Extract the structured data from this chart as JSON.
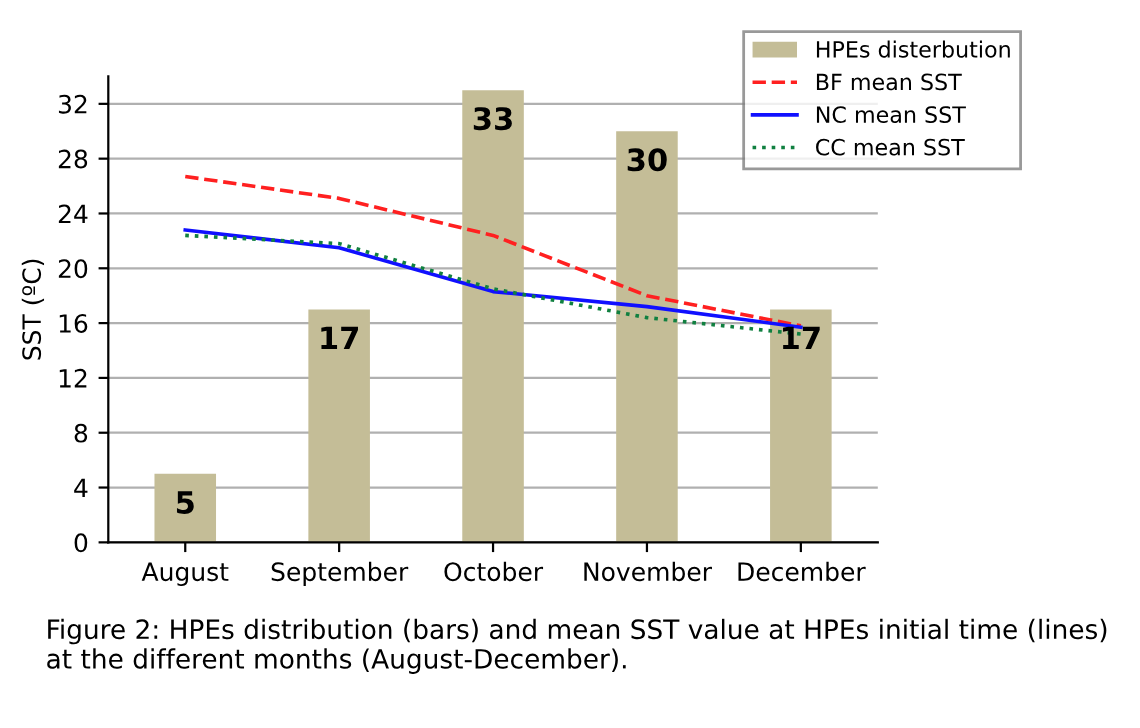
{
  "chart_data": {
    "type": "bar",
    "ylabel": "SST (ºC)",
    "categories": [
      "August",
      "September",
      "October",
      "November",
      "December"
    ],
    "series": [
      {
        "name": "HPEs disterbution",
        "color": "#c4bd97",
        "values": [
          5,
          17,
          33,
          30,
          17
        ],
        "data_labels": true
      },
      {
        "name": "BF mean SST",
        "type": "line",
        "color": "#ff2020",
        "line_style": "dashed",
        "values": [
          26.7,
          25.1,
          22.4,
          18.0,
          15.8
        ]
      },
      {
        "name": "NC mean SST",
        "type": "line",
        "color": "#1010ff",
        "line_style": "solid",
        "values": [
          22.8,
          21.5,
          18.3,
          17.2,
          15.7
        ]
      },
      {
        "name": "CC mean SST",
        "type": "line",
        "color": "#108040",
        "line_style": "dotted",
        "values": [
          22.4,
          21.8,
          18.5,
          16.4,
          15.2
        ]
      }
    ],
    "ylim": [
      0,
      34
    ],
    "yticks": [
      0,
      4,
      8,
      12,
      16,
      20,
      24,
      28,
      32
    ],
    "grid": "y",
    "legend": "top right",
    "annotations": [
      "Figure 2: HPEs distribution (bars) and mean SST value at HPEs initial time (lines) at the different months (August-December)."
    ]
  }
}
